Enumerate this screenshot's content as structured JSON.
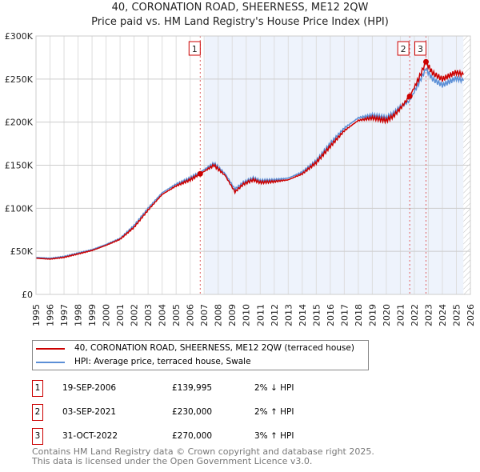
{
  "chart_data": {
    "type": "line",
    "title": "40, CORONATION ROAD, SHEERNESS, ME12 2QW",
    "subtitle": "Price paid vs. HM Land Registry's House Price Index (HPI)",
    "xlim": [
      1995,
      2026
    ],
    "ylim": [
      0,
      300000
    ],
    "yticks": [
      {
        "v": 0,
        "label": "£0"
      },
      {
        "v": 50000,
        "label": "£50K"
      },
      {
        "v": 100000,
        "label": "£100K"
      },
      {
        "v": 150000,
        "label": "£150K"
      },
      {
        "v": 200000,
        "label": "£200K"
      },
      {
        "v": 250000,
        "label": "£250K"
      },
      {
        "v": 300000,
        "label": "£300K"
      }
    ],
    "xticks": [
      "1995",
      "1996",
      "1997",
      "1998",
      "1999",
      "2000",
      "2001",
      "2002",
      "2003",
      "2004",
      "2005",
      "2006",
      "2007",
      "2008",
      "2009",
      "2010",
      "2011",
      "2012",
      "2013",
      "2014",
      "2015",
      "2016",
      "2017",
      "2018",
      "2019",
      "2020",
      "2021",
      "2022",
      "2023",
      "2024",
      "2025",
      "2026"
    ],
    "series": [
      {
        "name": "40, CORONATION ROAD, SHEERNESS, ME12 2QW (terraced house)",
        "color": "#cc0000",
        "points": [
          [
            1995,
            42000
          ],
          [
            1996,
            41000
          ],
          [
            1997,
            43000
          ],
          [
            1998,
            47000
          ],
          [
            1999,
            51000
          ],
          [
            2000,
            57000
          ],
          [
            2001,
            64000
          ],
          [
            2002,
            78000
          ],
          [
            2003,
            98000
          ],
          [
            2004,
            116000
          ],
          [
            2005,
            126000
          ],
          [
            2006,
            133000
          ],
          [
            2006.72,
            139995
          ],
          [
            2007.7,
            150000
          ],
          [
            2008.5,
            138000
          ],
          [
            2009.2,
            119000
          ],
          [
            2009.8,
            128000
          ],
          [
            2010.5,
            133000
          ],
          [
            2011,
            130000
          ],
          [
            2012,
            131000
          ],
          [
            2013,
            133000
          ],
          [
            2014,
            140000
          ],
          [
            2015,
            153000
          ],
          [
            2016,
            172000
          ],
          [
            2017,
            190000
          ],
          [
            2018,
            202000
          ],
          [
            2019,
            205000
          ],
          [
            2020,
            202000
          ],
          [
            2020.5,
            207000
          ],
          [
            2021,
            216000
          ],
          [
            2021.67,
            230000
          ],
          [
            2022.3,
            250000
          ],
          [
            2022.83,
            270000
          ],
          [
            2023.3,
            257000
          ],
          [
            2024,
            250000
          ],
          [
            2025,
            258000
          ],
          [
            2025.5,
            255000
          ]
        ]
      },
      {
        "name": "HPI: Average price, terraced house, Swale",
        "color": "#5b8fd6",
        "points": [
          [
            1995,
            43000
          ],
          [
            1996,
            42000
          ],
          [
            1997,
            44000
          ],
          [
            1998,
            48000
          ],
          [
            1999,
            52000
          ],
          [
            2000,
            58000
          ],
          [
            2001,
            65000
          ],
          [
            2002,
            80000
          ],
          [
            2003,
            100000
          ],
          [
            2004,
            118000
          ],
          [
            2005,
            128000
          ],
          [
            2006,
            135000
          ],
          [
            2006.72,
            142000
          ],
          [
            2007.7,
            152000
          ],
          [
            2008.5,
            140000
          ],
          [
            2009.2,
            122000
          ],
          [
            2009.8,
            130000
          ],
          [
            2010.5,
            135000
          ],
          [
            2011,
            132000
          ],
          [
            2012,
            133000
          ],
          [
            2013,
            135000
          ],
          [
            2014,
            142000
          ],
          [
            2015,
            155000
          ],
          [
            2016,
            175000
          ],
          [
            2017,
            193000
          ],
          [
            2018,
            205000
          ],
          [
            2019,
            208000
          ],
          [
            2020,
            205000
          ],
          [
            2020.5,
            210000
          ],
          [
            2021,
            218000
          ],
          [
            2021.67,
            225000
          ],
          [
            2022.3,
            245000
          ],
          [
            2022.83,
            262000
          ],
          [
            2023.3,
            250000
          ],
          [
            2024,
            243000
          ],
          [
            2025,
            251000
          ],
          [
            2025.5,
            248000
          ]
        ]
      }
    ],
    "sales": [
      {
        "id": "1",
        "x": 2006.72,
        "y": 139995
      },
      {
        "id": "2",
        "x": 2021.67,
        "y": 230000
      },
      {
        "id": "3",
        "x": 2022.83,
        "y": 270000
      }
    ]
  },
  "legend": {
    "red": "40, CORONATION ROAD, SHEERNESS, ME12 2QW (terraced house)",
    "blue": "HPI: Average price, terraced house, Swale"
  },
  "table": [
    {
      "id": "1",
      "date": "19-SEP-2006",
      "price": "£139,995",
      "hpi": "2% ↓ HPI"
    },
    {
      "id": "2",
      "date": "03-SEP-2021",
      "price": "£230,000",
      "hpi": "2% ↑ HPI"
    },
    {
      "id": "3",
      "date": "31-OCT-2022",
      "price": "£270,000",
      "hpi": "3% ↑ HPI"
    }
  ],
  "footer": {
    "line1": "Contains HM Land Registry data © Crown copyright and database right 2025.",
    "line2": "This data is licensed under the Open Government Licence v3.0."
  }
}
